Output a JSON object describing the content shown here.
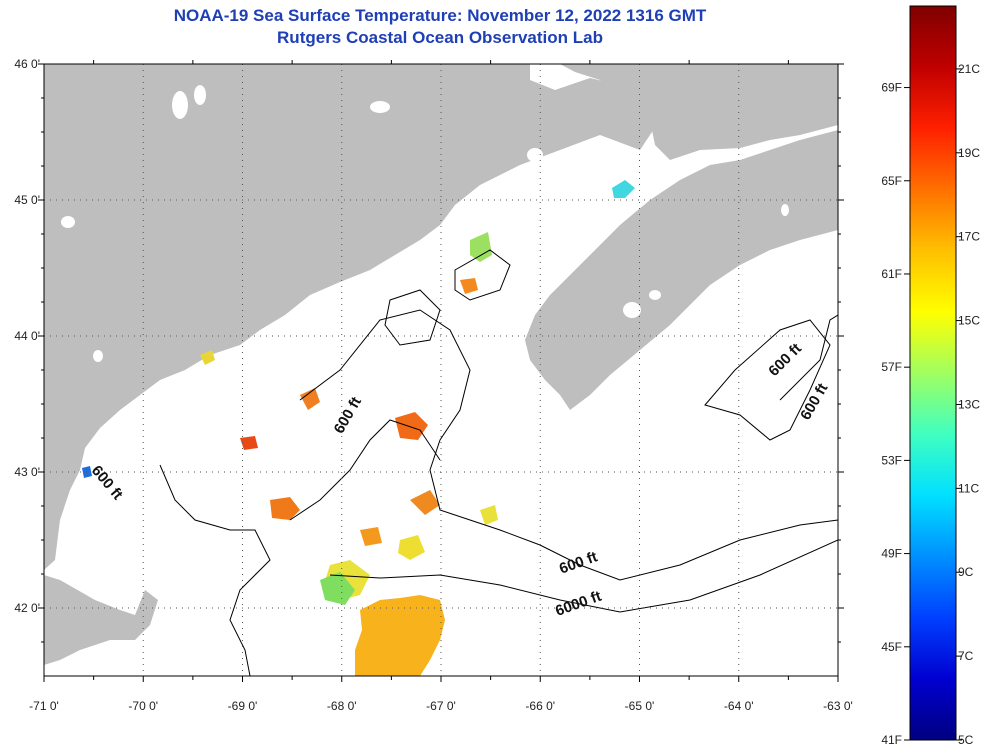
{
  "title_line1": "NOAA-19 Sea Surface Temperature:  November 12, 2022 1316 GMT",
  "title_line2": "Rutgers Coastal Ocean Observation Lab",
  "map": {
    "lon_ticks": [
      "-71 0'",
      "-70 0'",
      "-69 0'",
      "-68 0'",
      "-67 0'",
      "-66 0'",
      "-65 0'",
      "-64 0'",
      "-63 0'"
    ],
    "lat_ticks": [
      "46 0'",
      "45 0'",
      "44 0'",
      "43 0'",
      "42 0'"
    ],
    "lon_range": [
      -71,
      -63
    ],
    "lat_range": [
      41.5,
      46
    ],
    "land_color": "#bebebe",
    "grid": "dotted",
    "contour_labels": [
      {
        "text": "600 ft",
        "lon": -67.9,
        "lat": 43.4
      },
      {
        "text": "600 ft",
        "lon": -70.4,
        "lat": 42.9
      },
      {
        "text": "600 ft",
        "lon": -63.5,
        "lat": 43.8
      },
      {
        "text": "600 ft",
        "lon": -63.2,
        "lat": 43.5
      },
      {
        "text": "600 ft",
        "lon": -65.6,
        "lat": 42.3
      },
      {
        "text": "6000 ft",
        "lon": -65.6,
        "lat": 42.0
      }
    ]
  },
  "colorbar": {
    "fahrenheit_labels": [
      "69F",
      "65F",
      "61F",
      "57F",
      "53F",
      "49F",
      "45F",
      "41F"
    ],
    "celsius_labels": [
      "21C",
      "19C",
      "17C",
      "15C",
      "13C",
      "11C",
      "9C",
      "7C",
      "5C"
    ],
    "colors": [
      "#000080",
      "#0000d0",
      "#0040ff",
      "#0090ff",
      "#00e0ff",
      "#40ffc0",
      "#a0ff60",
      "#ffff00",
      "#ffc000",
      "#ff7000",
      "#ff2000",
      "#c00000",
      "#800000"
    ]
  }
}
